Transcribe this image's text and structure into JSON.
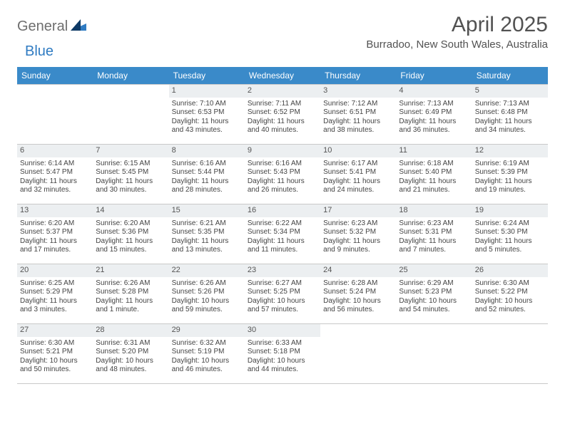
{
  "brand": {
    "part1": "General",
    "part2": "Blue"
  },
  "title": "April 2025",
  "location": "Burradoo, New South Wales, Australia",
  "headers": [
    "Sunday",
    "Monday",
    "Tuesday",
    "Wednesday",
    "Thursday",
    "Friday",
    "Saturday"
  ],
  "colors": {
    "header_bg": "#3a8ac9",
    "header_text": "#ffffff",
    "daynum_bg": "#eceff1",
    "border": "#c9c9c9",
    "text": "#444444",
    "title": "#525252",
    "logo_gray": "#6e6e6e",
    "logo_blue": "#2f7bc2"
  },
  "leading_blanks": 2,
  "days": [
    {
      "n": "1",
      "sunrise": "Sunrise: 7:10 AM",
      "sunset": "Sunset: 6:53 PM",
      "daylight": "Daylight: 11 hours and 43 minutes."
    },
    {
      "n": "2",
      "sunrise": "Sunrise: 7:11 AM",
      "sunset": "Sunset: 6:52 PM",
      "daylight": "Daylight: 11 hours and 40 minutes."
    },
    {
      "n": "3",
      "sunrise": "Sunrise: 7:12 AM",
      "sunset": "Sunset: 6:51 PM",
      "daylight": "Daylight: 11 hours and 38 minutes."
    },
    {
      "n": "4",
      "sunrise": "Sunrise: 7:13 AM",
      "sunset": "Sunset: 6:49 PM",
      "daylight": "Daylight: 11 hours and 36 minutes."
    },
    {
      "n": "5",
      "sunrise": "Sunrise: 7:13 AM",
      "sunset": "Sunset: 6:48 PM",
      "daylight": "Daylight: 11 hours and 34 minutes."
    },
    {
      "n": "6",
      "sunrise": "Sunrise: 6:14 AM",
      "sunset": "Sunset: 5:47 PM",
      "daylight": "Daylight: 11 hours and 32 minutes."
    },
    {
      "n": "7",
      "sunrise": "Sunrise: 6:15 AM",
      "sunset": "Sunset: 5:45 PM",
      "daylight": "Daylight: 11 hours and 30 minutes."
    },
    {
      "n": "8",
      "sunrise": "Sunrise: 6:16 AM",
      "sunset": "Sunset: 5:44 PM",
      "daylight": "Daylight: 11 hours and 28 minutes."
    },
    {
      "n": "9",
      "sunrise": "Sunrise: 6:16 AM",
      "sunset": "Sunset: 5:43 PM",
      "daylight": "Daylight: 11 hours and 26 minutes."
    },
    {
      "n": "10",
      "sunrise": "Sunrise: 6:17 AM",
      "sunset": "Sunset: 5:41 PM",
      "daylight": "Daylight: 11 hours and 24 minutes."
    },
    {
      "n": "11",
      "sunrise": "Sunrise: 6:18 AM",
      "sunset": "Sunset: 5:40 PM",
      "daylight": "Daylight: 11 hours and 21 minutes."
    },
    {
      "n": "12",
      "sunrise": "Sunrise: 6:19 AM",
      "sunset": "Sunset: 5:39 PM",
      "daylight": "Daylight: 11 hours and 19 minutes."
    },
    {
      "n": "13",
      "sunrise": "Sunrise: 6:20 AM",
      "sunset": "Sunset: 5:37 PM",
      "daylight": "Daylight: 11 hours and 17 minutes."
    },
    {
      "n": "14",
      "sunrise": "Sunrise: 6:20 AM",
      "sunset": "Sunset: 5:36 PM",
      "daylight": "Daylight: 11 hours and 15 minutes."
    },
    {
      "n": "15",
      "sunrise": "Sunrise: 6:21 AM",
      "sunset": "Sunset: 5:35 PM",
      "daylight": "Daylight: 11 hours and 13 minutes."
    },
    {
      "n": "16",
      "sunrise": "Sunrise: 6:22 AM",
      "sunset": "Sunset: 5:34 PM",
      "daylight": "Daylight: 11 hours and 11 minutes."
    },
    {
      "n": "17",
      "sunrise": "Sunrise: 6:23 AM",
      "sunset": "Sunset: 5:32 PM",
      "daylight": "Daylight: 11 hours and 9 minutes."
    },
    {
      "n": "18",
      "sunrise": "Sunrise: 6:23 AM",
      "sunset": "Sunset: 5:31 PM",
      "daylight": "Daylight: 11 hours and 7 minutes."
    },
    {
      "n": "19",
      "sunrise": "Sunrise: 6:24 AM",
      "sunset": "Sunset: 5:30 PM",
      "daylight": "Daylight: 11 hours and 5 minutes."
    },
    {
      "n": "20",
      "sunrise": "Sunrise: 6:25 AM",
      "sunset": "Sunset: 5:29 PM",
      "daylight": "Daylight: 11 hours and 3 minutes."
    },
    {
      "n": "21",
      "sunrise": "Sunrise: 6:26 AM",
      "sunset": "Sunset: 5:28 PM",
      "daylight": "Daylight: 11 hours and 1 minute."
    },
    {
      "n": "22",
      "sunrise": "Sunrise: 6:26 AM",
      "sunset": "Sunset: 5:26 PM",
      "daylight": "Daylight: 10 hours and 59 minutes."
    },
    {
      "n": "23",
      "sunrise": "Sunrise: 6:27 AM",
      "sunset": "Sunset: 5:25 PM",
      "daylight": "Daylight: 10 hours and 57 minutes."
    },
    {
      "n": "24",
      "sunrise": "Sunrise: 6:28 AM",
      "sunset": "Sunset: 5:24 PM",
      "daylight": "Daylight: 10 hours and 56 minutes."
    },
    {
      "n": "25",
      "sunrise": "Sunrise: 6:29 AM",
      "sunset": "Sunset: 5:23 PM",
      "daylight": "Daylight: 10 hours and 54 minutes."
    },
    {
      "n": "26",
      "sunrise": "Sunrise: 6:30 AM",
      "sunset": "Sunset: 5:22 PM",
      "daylight": "Daylight: 10 hours and 52 minutes."
    },
    {
      "n": "27",
      "sunrise": "Sunrise: 6:30 AM",
      "sunset": "Sunset: 5:21 PM",
      "daylight": "Daylight: 10 hours and 50 minutes."
    },
    {
      "n": "28",
      "sunrise": "Sunrise: 6:31 AM",
      "sunset": "Sunset: 5:20 PM",
      "daylight": "Daylight: 10 hours and 48 minutes."
    },
    {
      "n": "29",
      "sunrise": "Sunrise: 6:32 AM",
      "sunset": "Sunset: 5:19 PM",
      "daylight": "Daylight: 10 hours and 46 minutes."
    },
    {
      "n": "30",
      "sunrise": "Sunrise: 6:33 AM",
      "sunset": "Sunset: 5:18 PM",
      "daylight": "Daylight: 10 hours and 44 minutes."
    }
  ],
  "trailing_blanks": 3
}
